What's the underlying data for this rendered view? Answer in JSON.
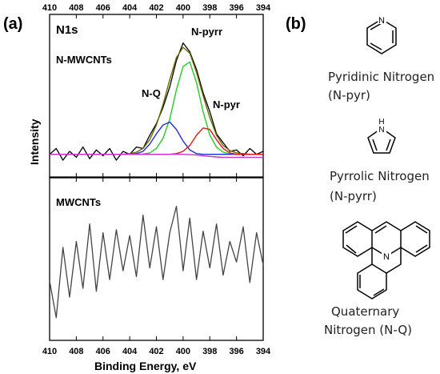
{
  "figure": {
    "panel_a_label": "(a)",
    "panel_b_label": "(b)"
  },
  "axes": {
    "xlabel": "Binding Energy, eV",
    "ylabel": "Intensity",
    "xticks": [
      410,
      408,
      406,
      404,
      402,
      400,
      398,
      396,
      394
    ],
    "xlim": [
      410,
      394
    ],
    "x_direction": "reversed"
  },
  "chart_data": [
    {
      "type": "line",
      "panel": "top",
      "title": "N1s",
      "sample_label": "N-MWCNTs",
      "annotations": [
        "N-pyrr",
        "N-Q",
        "N-pyr"
      ],
      "xlim": [
        410,
        394
      ],
      "ylim": [
        0,
        10
      ],
      "x": [
        410,
        409.5,
        409,
        408.5,
        408,
        407.5,
        407,
        406.5,
        406,
        405.5,
        405,
        404.5,
        404,
        403.5,
        403,
        402.5,
        402,
        401.5,
        401,
        400.5,
        400,
        399.5,
        399,
        398.5,
        398,
        397.5,
        397,
        396.5,
        396,
        395.5,
        395,
        394.5,
        394
      ],
      "series": [
        {
          "name": "",
          "color": "#000000",
          "values": [
            1.0,
            1.4,
            0.6,
            1.2,
            0.8,
            1.5,
            0.7,
            1.3,
            0.9,
            1.4,
            0.6,
            1.2,
            1.0,
            1.5,
            1.4,
            2.3,
            3.1,
            4.2,
            5.6,
            7.4,
            8.6,
            8.0,
            6.8,
            5.2,
            3.9,
            2.4,
            1.8,
            1.2,
            1.3,
            0.9,
            1.4,
            1.0,
            1.2
          ]
        },
        {
          "name": "",
          "color": "#6b6b00",
          "values": [
            1.0,
            1.0,
            1.0,
            1.0,
            1.0,
            1.0,
            1.0,
            1.0,
            1.0,
            1.0,
            1.0,
            1.0,
            1.05,
            1.15,
            1.4,
            2.0,
            3.0,
            4.4,
            6.1,
            7.6,
            8.3,
            7.9,
            6.6,
            5.0,
            3.5,
            2.3,
            1.6,
            1.25,
            1.1,
            1.05,
            1.0,
            1.0,
            1.0
          ]
        },
        {
          "name": "",
          "color": "#22cc22",
          "values": [
            1.0,
            1.0,
            1.0,
            1.0,
            1.0,
            1.0,
            1.0,
            1.0,
            1.0,
            1.0,
            1.0,
            1.0,
            1.0,
            1.0,
            1.02,
            1.1,
            1.4,
            2.1,
            3.4,
            5.4,
            7.0,
            7.3,
            5.9,
            3.9,
            2.3,
            1.5,
            1.15,
            1.04,
            1.0,
            1.0,
            1.0,
            1.0,
            1.0
          ]
        },
        {
          "name": "",
          "color": "#1f2fd6",
          "values": [
            1.0,
            1.0,
            1.0,
            1.0,
            1.0,
            1.0,
            1.0,
            1.0,
            1.0,
            1.0,
            1.0,
            1.0,
            1.0,
            1.05,
            1.2,
            1.7,
            2.4,
            3.0,
            3.2,
            2.7,
            1.9,
            1.3,
            1.05,
            1.0,
            1.0,
            1.0,
            1.0,
            1.0,
            1.0,
            1.0,
            1.0,
            1.0,
            1.0
          ]
        },
        {
          "name": "",
          "color": "#e01818",
          "values": [
            1.0,
            1.0,
            1.0,
            1.0,
            1.0,
            1.0,
            1.0,
            1.0,
            1.0,
            1.0,
            1.0,
            1.0,
            1.0,
            1.0,
            1.0,
            1.0,
            1.0,
            1.0,
            1.0,
            1.05,
            1.2,
            1.6,
            2.3,
            2.8,
            2.7,
            2.0,
            1.4,
            1.1,
            1.0,
            1.0,
            1.0,
            1.0,
            1.0
          ]
        },
        {
          "name": "",
          "color": "#cc33cc",
          "values": [
            1.0,
            1.0,
            1.0,
            1.0,
            1.0,
            1.0,
            1.0,
            1.0,
            1.0,
            1.0,
            1.0,
            1.0,
            1.0,
            1.0,
            1.0,
            1.0,
            1.0,
            1.0,
            1.0,
            1.0,
            1.0,
            0.98,
            0.95,
            0.9,
            0.86,
            0.82,
            0.8,
            0.8,
            0.8,
            0.8,
            0.8,
            0.8,
            0.8
          ]
        }
      ]
    },
    {
      "type": "line",
      "panel": "bottom",
      "sample_label": "MWCNTs",
      "xlim": [
        410,
        394
      ],
      "ylim": [
        0,
        10
      ],
      "x": [
        410,
        409.5,
        409,
        408.5,
        408,
        407.5,
        407,
        406.5,
        406,
        405.5,
        405,
        404.5,
        404,
        403.5,
        403,
        402.5,
        402,
        401.5,
        401,
        400.5,
        400,
        399.5,
        399,
        398.5,
        398,
        397.5,
        397,
        396.5,
        396,
        395.5,
        395,
        394.5,
        394
      ],
      "series": [
        {
          "name": "",
          "color": "#444444",
          "values": [
            3.5,
            1.0,
            5.8,
            2.4,
            6.2,
            3.0,
            7.4,
            2.8,
            6.8,
            3.6,
            7.0,
            4.2,
            6.6,
            3.8,
            8.0,
            4.4,
            7.2,
            3.6,
            6.8,
            8.6,
            4.2,
            7.8,
            3.6,
            6.9,
            4.4,
            7.4,
            3.9,
            6.2,
            4.8,
            7.2,
            3.4,
            6.8,
            4.6
          ]
        }
      ]
    }
  ],
  "molecules": [
    {
      "line1": "Pyridinic Nitrogen",
      "line2": "(N-pyr)",
      "atom": "N"
    },
    {
      "line1": "Pyrrolic Nitrogen",
      "line2": "(N-pyrr)",
      "atom": "H\nN"
    },
    {
      "line1": "Quaternary",
      "line2": "Nitrogen (N-Q)",
      "atom": "N"
    }
  ],
  "molecule_atoms": {
    "pyridine_atom": "N",
    "pyrrole_h": "H",
    "pyrrole_n": "N",
    "quaternary_atom": "N"
  }
}
